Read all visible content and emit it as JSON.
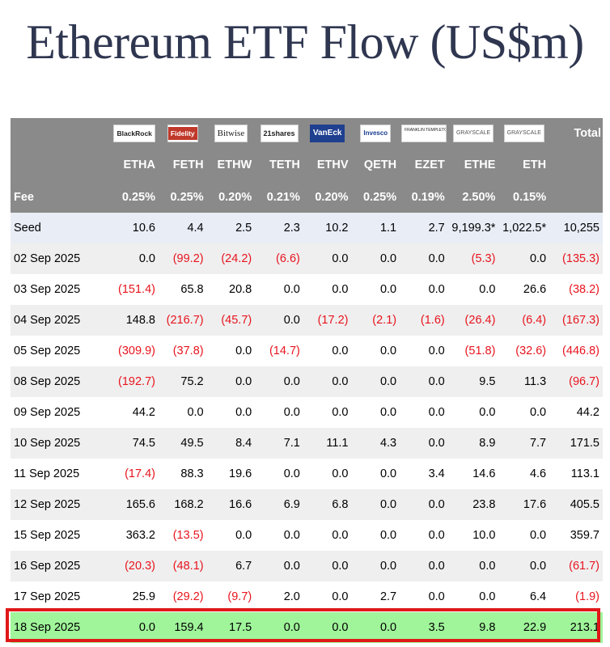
{
  "title": "Ethereum ETF Flow (US$m)",
  "logos": [
    "BlackRock",
    "Fidelity",
    "Bitwise",
    "21shares",
    "VanEck",
    "Invesco",
    "FRANKLIN TEMPLETON",
    "GRAYSCALE",
    "GRAYSCALE"
  ],
  "header": {
    "total_label": "Total",
    "fee_label": "Fee",
    "tickers": [
      "ETHA",
      "FETH",
      "ETHW",
      "TETH",
      "ETHV",
      "QETH",
      "EZET",
      "ETHE",
      "ETH"
    ],
    "fees": [
      "0.25%",
      "0.25%",
      "0.20%",
      "0.21%",
      "0.20%",
      "0.25%",
      "0.19%",
      "2.50%",
      "0.15%"
    ]
  },
  "rows": [
    {
      "date": "Seed",
      "values": [
        "10.6",
        "4.4",
        "2.5",
        "2.3",
        "10.2",
        "1.1",
        "2.7",
        "9,199.3*",
        "1,022.5*"
      ],
      "total": "10,255"
    },
    {
      "date": "02 Sep 2025",
      "values": [
        "0.0",
        "(99.2)",
        "(24.2)",
        "(6.6)",
        "0.0",
        "0.0",
        "0.0",
        "(5.3)",
        "0.0"
      ],
      "total": "(135.3)"
    },
    {
      "date": "03 Sep 2025",
      "values": [
        "(151.4)",
        "65.8",
        "20.8",
        "0.0",
        "0.0",
        "0.0",
        "0.0",
        "0.0",
        "26.6"
      ],
      "total": "(38.2)"
    },
    {
      "date": "04 Sep 2025",
      "values": [
        "148.8",
        "(216.7)",
        "(45.7)",
        "0.0",
        "(17.2)",
        "(2.1)",
        "(1.6)",
        "(26.4)",
        "(6.4)"
      ],
      "total": "(167.3)"
    },
    {
      "date": "05 Sep 2025",
      "values": [
        "(309.9)",
        "(37.8)",
        "0.0",
        "(14.7)",
        "0.0",
        "0.0",
        "0.0",
        "(51.8)",
        "(32.6)"
      ],
      "total": "(446.8)"
    },
    {
      "date": "08 Sep 2025",
      "values": [
        "(192.7)",
        "75.2",
        "0.0",
        "0.0",
        "0.0",
        "0.0",
        "0.0",
        "9.5",
        "11.3"
      ],
      "total": "(96.7)"
    },
    {
      "date": "09 Sep 2025",
      "values": [
        "44.2",
        "0.0",
        "0.0",
        "0.0",
        "0.0",
        "0.0",
        "0.0",
        "0.0",
        "0.0"
      ],
      "total": "44.2"
    },
    {
      "date": "10 Sep 2025",
      "values": [
        "74.5",
        "49.5",
        "8.4",
        "7.1",
        "11.1",
        "4.3",
        "0.0",
        "8.9",
        "7.7"
      ],
      "total": "171.5"
    },
    {
      "date": "11 Sep 2025",
      "values": [
        "(17.4)",
        "88.3",
        "19.6",
        "0.0",
        "0.0",
        "0.0",
        "3.4",
        "14.6",
        "4.6"
      ],
      "total": "113.1"
    },
    {
      "date": "12 Sep 2025",
      "values": [
        "165.6",
        "168.2",
        "16.6",
        "6.9",
        "6.8",
        "0.0",
        "0.0",
        "23.8",
        "17.6"
      ],
      "total": "405.5"
    },
    {
      "date": "15 Sep 2025",
      "values": [
        "363.2",
        "(13.5)",
        "0.0",
        "0.0",
        "0.0",
        "0.0",
        "0.0",
        "10.0",
        "0.0"
      ],
      "total": "359.7"
    },
    {
      "date": "16 Sep 2025",
      "values": [
        "(20.3)",
        "(48.1)",
        "6.7",
        "0.0",
        "0.0",
        "0.0",
        "0.0",
        "0.0",
        "0.0"
      ],
      "total": "(61.7)"
    },
    {
      "date": "17 Sep 2025",
      "values": [
        "25.9",
        "(29.2)",
        "(9.7)",
        "2.0",
        "0.0",
        "2.7",
        "0.0",
        "0.0",
        "6.4"
      ],
      "total": "(1.9)"
    },
    {
      "date": "18 Sep 2025",
      "values": [
        "0.0",
        "159.4",
        "17.5",
        "0.0",
        "0.0",
        "0.0",
        "3.5",
        "9.8",
        "22.9"
      ],
      "total": "213.1"
    }
  ],
  "colors": {
    "header_bg": "#8a8a8a",
    "negative": "#e8141e",
    "highlight_bg": "#a0f59a",
    "highlight_border": "#e01818",
    "title": "#2f3650"
  }
}
